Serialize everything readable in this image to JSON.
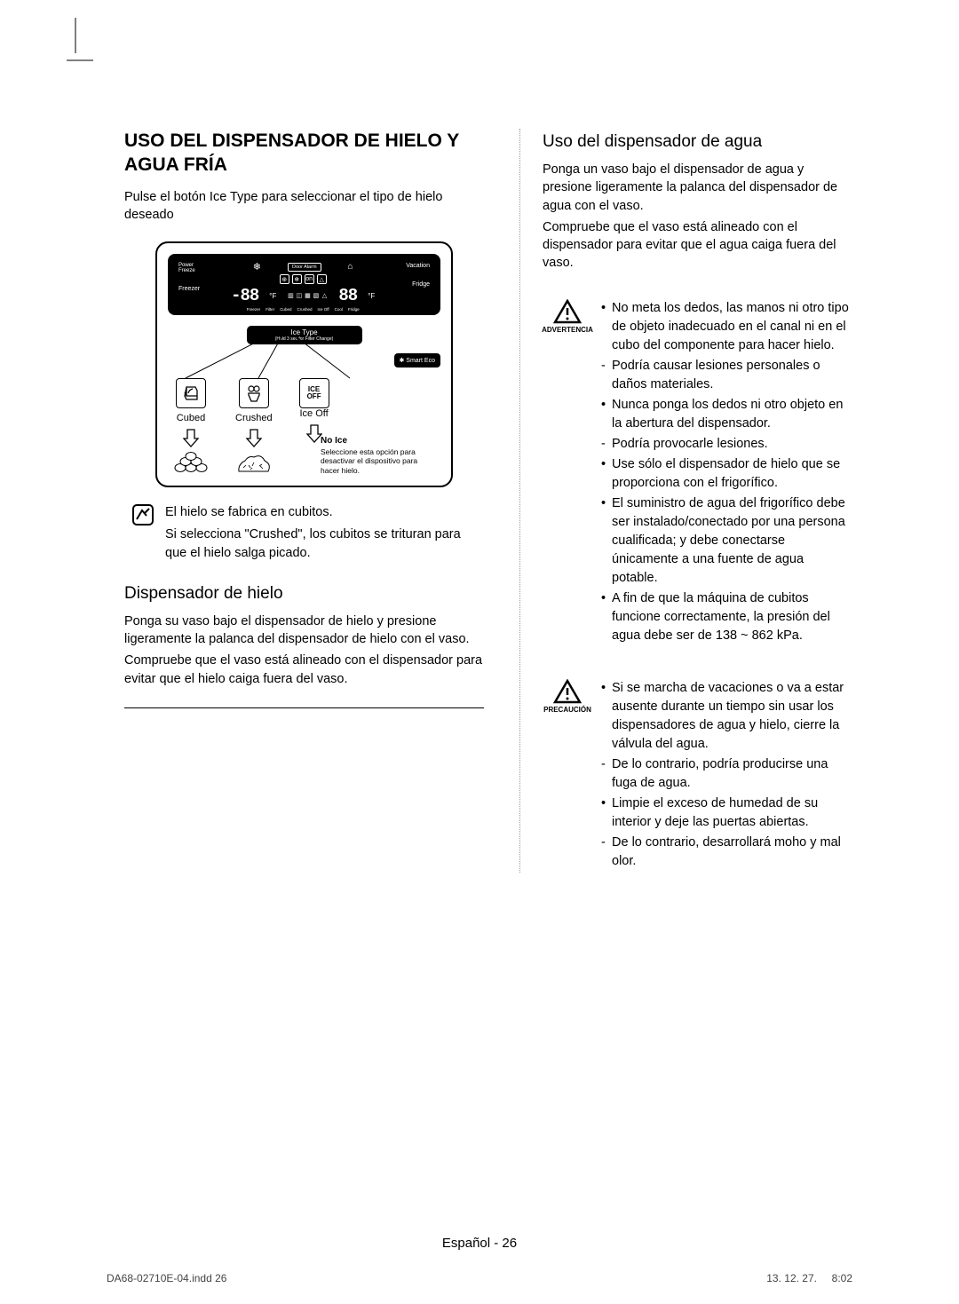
{
  "heading_main": "USO DEL DISPENSADOR DE HIELO Y AGUA FRÍA",
  "intro_left": "Pulse el botón Ice Type para seleccionar el tipo de hielo deseado",
  "diagram": {
    "power_freeze": "Power\nFreeze",
    "freezer_label": "Freezer",
    "vacation": "Vacation",
    "fridge_label": "Fridge",
    "door_alarm": "Door Alarm",
    "temp_left": "-88",
    "temp_right": "88",
    "ice_type": "Ice Type",
    "ice_type_sub": "(Hold 3 sec for Filter Change)",
    "smart_eco": "✱ Smart Eco",
    "options": {
      "cubed": "Cubed",
      "crushed": "Crushed",
      "iceoff": "Ice Off",
      "iceoff_icon_top": "ICE",
      "iceoff_icon_bot": "OFF"
    },
    "no_ice_title": "No Ice",
    "no_ice_text": "Seleccione esta opción para desactivar el dispositivo para hacer hielo."
  },
  "note_lines": {
    "l1": "El hielo se fabrica en cubitos.",
    "l2": "Si selecciona \"Crushed\", los cubitos se trituran para que el hielo salga picado."
  },
  "ice_dispenser": {
    "title": "Dispensador de hielo",
    "p1": "Ponga su vaso bajo el dispensador de hielo y presione ligeramente la palanca del dispensador de hielo con el vaso.",
    "p2": "Compruebe que el vaso está alineado con el dispensador para evitar que el hielo caiga fuera del vaso."
  },
  "water_dispenser": {
    "title": "Uso del dispensador de agua",
    "p1": "Ponga un vaso bajo el dispensador de agua y presione ligeramente la palanca del dispensador de agua con el vaso.",
    "p2": "Compruebe que el vaso está alineado con el dispensador para evitar que el agua caiga fuera del vaso."
  },
  "warning": {
    "label": "ADVERTENCIA",
    "items": [
      {
        "t": "bullet",
        "text": "No meta los dedos, las manos ni otro tipo de objeto inadecuado en el canal ni en el cubo del componente para hacer hielo."
      },
      {
        "t": "dash",
        "text": "Podría causar lesiones personales o daños materiales."
      },
      {
        "t": "bullet",
        "text": "Nunca ponga los dedos ni otro objeto en la abertura del dispensador."
      },
      {
        "t": "dash",
        "text": "Podría provocarle lesiones."
      },
      {
        "t": "bullet",
        "text": "Use sólo el dispensador de hielo que se proporciona con el frigorífico."
      },
      {
        "t": "bullet",
        "text": "El suministro de agua del frigorífico debe ser instalado/conectado por una persona cualificada; y debe conectarse únicamente a una fuente de agua potable."
      },
      {
        "t": "bullet",
        "text": "A fin de que la máquina de cubitos funcione correctamente, la presión del agua debe ser de 138 ~ 862 kPa."
      }
    ]
  },
  "caution": {
    "label": "PRECAUCIÓN",
    "items": [
      {
        "t": "bullet",
        "text": "Si se marcha de vacaciones o va a estar ausente durante un tiempo sin usar los dispensadores de agua y hielo, cierre la válvula del agua."
      },
      {
        "t": "dash",
        "text": "De lo contrario, podría producirse una fuga de agua."
      },
      {
        "t": "bullet",
        "text": "Limpie el exceso de humedad de su interior y deje las puertas abiertas."
      },
      {
        "t": "dash",
        "text": "De lo contrario, desarrollará moho y mal olor."
      }
    ]
  },
  "footer": "Español - 26",
  "print": {
    "file": "DA68-02710E-04.indd   26",
    "date": "13. 12. 27.",
    "time": "8:02"
  },
  "colors": {
    "text": "#000000",
    "panel_bg": "#000000",
    "panel_fg": "#ffffff"
  }
}
